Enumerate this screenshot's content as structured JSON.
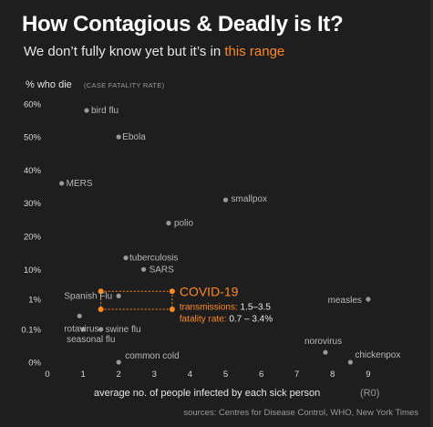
{
  "header": {
    "title": "How Contagious & Deadly is It?",
    "subtitle_main": "We don’t fully know yet but it’s in ",
    "subtitle_highlight": "this range"
  },
  "colors": {
    "background": "#1e1e1e",
    "point": "#9a9a9a",
    "accent": "#ff8a1a",
    "text": "#ffffff"
  },
  "chart_data": {
    "type": "scatter",
    "title": "How Contagious & Deadly is It?",
    "subtitle": "We don’t fully know yet but it’s in this range",
    "xlabel": "average no. of people infected by each sick person",
    "xlabel_note": "(R0)",
    "ylabel": "% who die",
    "ylabel_note": "(CASE FATALITY RATE)",
    "source": "sources: Centres for Disease Control, WHO, New York Times",
    "x_ticks": [
      "0",
      "1",
      "2",
      "3",
      "4",
      "5",
      "6",
      "7",
      "8",
      "9"
    ],
    "xlim": [
      0,
      9.5
    ],
    "y_scale": "piecewise: 0–1% compressed, 1–60% linear",
    "y_ticks": [
      "0%",
      "0.1%",
      "1%",
      "10%",
      "20%",
      "30%",
      "40%",
      "50%",
      "60%"
    ],
    "grid": false,
    "points": [
      {
        "name": "bird flu",
        "x": 1.1,
        "y": 58
      },
      {
        "name": "Ebola",
        "x": 2.0,
        "y": 50
      },
      {
        "name": "MERS",
        "x": 0.4,
        "y": 36
      },
      {
        "name": "smallpox",
        "x": 5.0,
        "y": 31
      },
      {
        "name": "polio",
        "x": 3.4,
        "y": 24
      },
      {
        "name": "tuberculosis",
        "x": 2.2,
        "y": 13.5
      },
      {
        "name": "SARS",
        "x": 2.7,
        "y": 10
      },
      {
        "name": "Spanish Flu",
        "x": 2.0,
        "y": 2.0
      },
      {
        "name": "measles",
        "x": 9.0,
        "y": 1.0
      },
      {
        "name": "rotavirus",
        "x": 0.9,
        "y": 0.5
      },
      {
        "name": "swine flu",
        "x": 1.5,
        "y": 0.1
      },
      {
        "name": "seasonal flu",
        "x": 1.0,
        "y": 0.1
      },
      {
        "name": "common cold",
        "x": 2.0,
        "y": 0.0
      },
      {
        "name": "norovirus",
        "x": 7.8,
        "y": 0.03
      },
      {
        "name": "chickenpox",
        "x": 8.5,
        "y": 0.0
      }
    ],
    "covid": {
      "name": "COVID-19",
      "transmissions_label": "transmissions:",
      "transmissions_value": "1.5–3.5",
      "transmissions_range": [
        1.5,
        3.5
      ],
      "fatality_label": "fatality rate:",
      "fatality_value": "0.7 – 3.4%",
      "fatality_range": [
        0.7,
        3.4
      ]
    }
  }
}
